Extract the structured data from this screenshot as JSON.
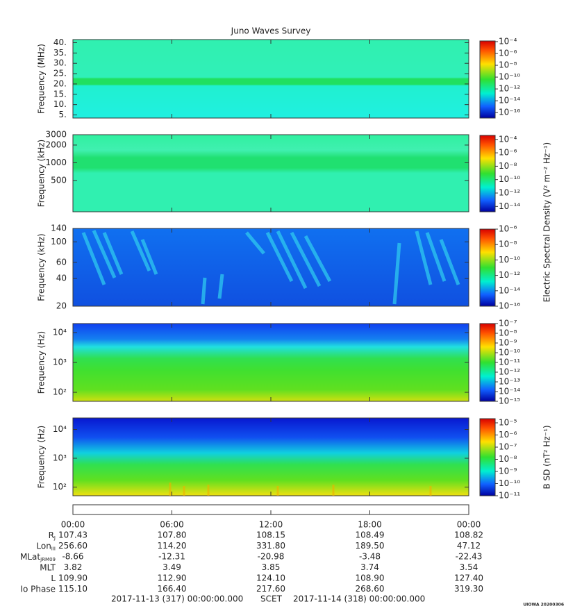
{
  "chart_data": [
    {
      "type": "spectrogram",
      "title": "Juno Waves Survey",
      "ylabel": "Frequency (MHz)",
      "yscale": "linear",
      "ylim": [
        3.5,
        41.5
      ],
      "yticks": [
        {
          "value": 5,
          "label": "5."
        },
        {
          "value": 10,
          "label": "10."
        },
        {
          "value": 15,
          "label": "15."
        },
        {
          "value": 20,
          "label": "20."
        },
        {
          "value": 25,
          "label": "25."
        },
        {
          "value": 30,
          "label": "30."
        },
        {
          "value": 35,
          "label": "35."
        },
        {
          "value": 40,
          "label": "40."
        }
      ],
      "clim": [
        1.2e-17,
        0.00013
      ],
      "cticks": [
        {
          "value": 0.0001,
          "label": "10⁻⁴"
        },
        {
          "value": 1e-06,
          "label": "10⁻⁶"
        },
        {
          "value": 1e-08,
          "label": "10⁻⁸"
        },
        {
          "value": 1e-10,
          "label": "10⁻¹⁰"
        },
        {
          "value": 1e-12,
          "label": "10⁻¹²"
        },
        {
          "value": 1e-14,
          "label": "10⁻¹⁴"
        },
        {
          "value": 1e-16,
          "label": "10⁻¹⁶"
        }
      ]
    },
    {
      "type": "spectrogram",
      "ylabel": "Frequency (kHz)",
      "yscale": "log",
      "ylim": [
        147,
        3000
      ],
      "yticks": [
        500,
        1000,
        2000,
        3000
      ],
      "clim": [
        1.6e-15,
        0.0004
      ],
      "cticks": [
        {
          "value": 0.0001,
          "label": "10⁻⁴"
        },
        {
          "value": 1e-06,
          "label": "10⁻⁶"
        },
        {
          "value": 1e-08,
          "label": "10⁻⁸"
        },
        {
          "value": 1e-10,
          "label": "10⁻¹⁰"
        },
        {
          "value": 1e-12,
          "label": "10⁻¹²"
        },
        {
          "value": 1e-14,
          "label": "10⁻¹⁴"
        }
      ],
      "clabel": "Electric Spectral Density (V² m⁻² Hz⁻¹)"
    },
    {
      "type": "spectrogram",
      "ylabel": "Frequency (kHz)",
      "yscale": "log",
      "ylim": [
        20,
        140
      ],
      "yticks": [
        20,
        40,
        60,
        100,
        140
      ],
      "clim": [
        1e-16,
        1e-06
      ],
      "cticks": [
        {
          "value": 1e-06,
          "label": "10⁻⁶"
        },
        {
          "value": 1e-08,
          "label": "10⁻⁸"
        },
        {
          "value": 1e-10,
          "label": "10⁻¹⁰"
        },
        {
          "value": 1e-12,
          "label": "10⁻¹²"
        },
        {
          "value": 1e-14,
          "label": "10⁻¹⁴"
        },
        {
          "value": 1e-16,
          "label": "10⁻¹⁶"
        }
      ]
    },
    {
      "type": "spectrogram",
      "ylabel": "Frequency (Hz)",
      "yscale": "log",
      "ylim": [
        50,
        20000
      ],
      "yticks": [
        {
          "value": 100,
          "label": "10²"
        },
        {
          "value": 1000,
          "label": "10³"
        },
        {
          "value": 10000,
          "label": "10⁴"
        }
      ],
      "clim": [
        1e-15,
        1e-07
      ],
      "cticks": [
        {
          "value": 1e-07,
          "label": "10⁻⁷"
        },
        {
          "value": 1e-08,
          "label": "10⁻⁸"
        },
        {
          "value": 1e-09,
          "label": "10⁻⁹"
        },
        {
          "value": 1e-10,
          "label": "10⁻¹⁰"
        },
        {
          "value": 1e-11,
          "label": "10⁻¹¹"
        },
        {
          "value": 1e-12,
          "label": "10⁻¹²"
        },
        {
          "value": 1e-13,
          "label": "10⁻¹³"
        },
        {
          "value": 1e-14,
          "label": "10⁻¹⁴"
        },
        {
          "value": 1e-15,
          "label": "10⁻¹⁵"
        }
      ]
    },
    {
      "type": "spectrogram",
      "ylabel": "Frequency (Hz)",
      "yscale": "log",
      "ylim": [
        50,
        25000
      ],
      "yticks": [
        {
          "value": 100,
          "label": "10²"
        },
        {
          "value": 1000,
          "label": "10³"
        },
        {
          "value": 10000,
          "label": "10⁴"
        }
      ],
      "clim": [
        1e-11,
        2.2e-05
      ],
      "cticks": [
        {
          "value": 1e-05,
          "label": "10⁻⁵"
        },
        {
          "value": 1e-06,
          "label": "10⁻⁶"
        },
        {
          "value": 1e-07,
          "label": "10⁻⁷"
        },
        {
          "value": 1e-08,
          "label": "10⁻⁸"
        },
        {
          "value": 1e-09,
          "label": "10⁻⁹"
        },
        {
          "value": 1e-10,
          "label": "10⁻¹⁰"
        },
        {
          "value": 1e-11,
          "label": "10⁻¹¹"
        }
      ],
      "clabel": "B SD (nT² Hz⁻¹)"
    }
  ],
  "time_axis": {
    "xlim": [
      0,
      24
    ],
    "ticks": [
      {
        "value": 0,
        "label": "00:00"
      },
      {
        "value": 6,
        "label": "06:00"
      },
      {
        "value": 12,
        "label": "12:00"
      },
      {
        "value": 18,
        "label": "18:00"
      },
      {
        "value": 24,
        "label": "00:00"
      }
    ]
  },
  "ephemeris": [
    {
      "label": "R",
      "sub": "J",
      "values": [
        "107.43",
        "107.80",
        "108.15",
        "108.49",
        "108.82"
      ]
    },
    {
      "label": "Lon",
      "sub": "III",
      "values": [
        "256.60",
        "114.20",
        "331.80",
        "189.50",
        "47.12"
      ]
    },
    {
      "label": "MLat",
      "sub": "JRM09",
      "values": [
        "-8.66",
        "-12.31",
        "-20.98",
        "-3.48",
        "-22.43"
      ]
    },
    {
      "label": "MLT",
      "values": [
        "3.82",
        "3.49",
        "3.85",
        "3.74",
        "3.54"
      ]
    },
    {
      "label": "L",
      "values": [
        "109.90",
        "112.90",
        "124.10",
        "108.90",
        "127.40"
      ]
    },
    {
      "label": "Io Phase",
      "values": [
        "115.10",
        "166.40",
        "217.60",
        "268.60",
        "319.30"
      ]
    }
  ],
  "footer": {
    "start": "2017-11-13 (317) 00:00:00.000",
    "scet": "SCET",
    "end": "2017-11-14 (318) 00:00:00.000",
    "credit": "UIOWA 20200306"
  }
}
